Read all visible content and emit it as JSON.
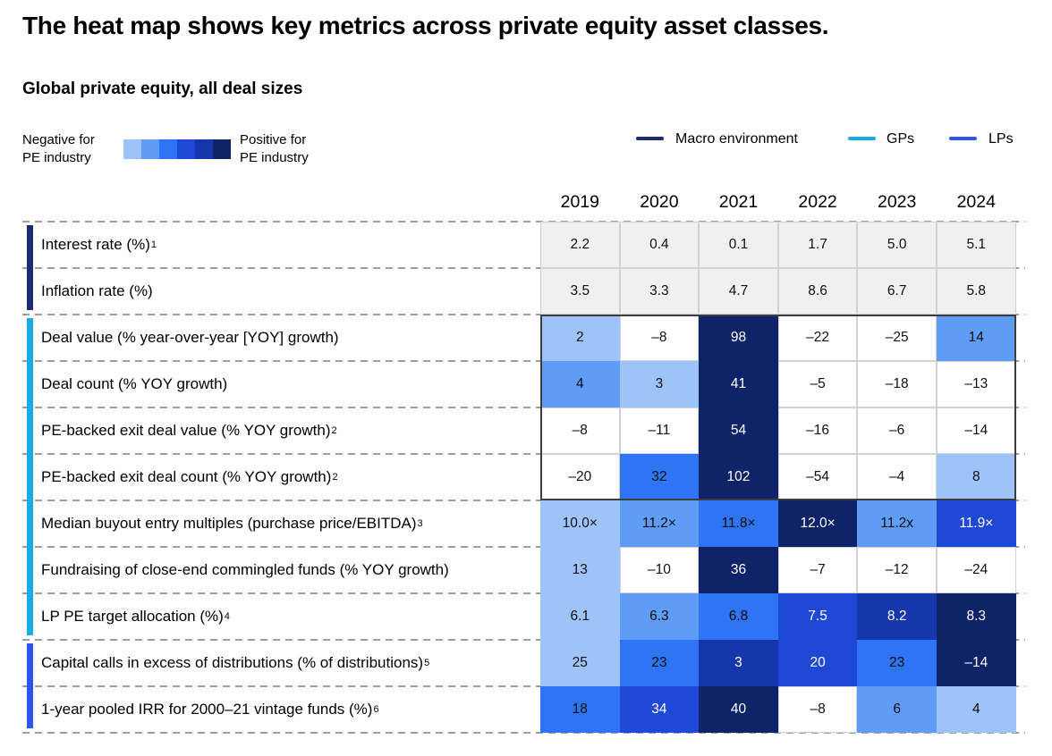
{
  "page": {
    "title": "The heat map shows key metrics across private equity asset classes.",
    "subtitle": "Global private equity, all deal sizes"
  },
  "scale_legend": {
    "negative": [
      "Negative for",
      "PE industry"
    ],
    "positive": [
      "Positive for",
      "PE industry"
    ],
    "swatches": [
      "#9DC3F8",
      "#5F9CF6",
      "#2E74F4",
      "#1E49D6",
      "#1637AB",
      "#0F2368"
    ]
  },
  "line_legend": {
    "items": [
      {
        "label": "Macro environment",
        "color": "#1B2C74"
      },
      {
        "label": "GPs",
        "color": "#19AAE8"
      },
      {
        "label": "LPs",
        "color": "#2E55EE"
      }
    ]
  },
  "palette": {
    "l1": "#9DC3F8",
    "l2": "#5F9CF6",
    "l3": "#2E74F4",
    "l4": "#1E49D6",
    "l5": "#1637AB",
    "l6": "#0F2368",
    "gray": "#F0F0F0",
    "white": "#FFFFFF"
  },
  "white_text_shades": [
    "l4",
    "l5",
    "l6"
  ],
  "chart_data": {
    "type": "heatmap",
    "title": "The heat map shows key metrics across private equity asset classes.",
    "subtitle": "Global private equity, all deal sizes",
    "columns": [
      "2019",
      "2020",
      "2021",
      "2022",
      "2023",
      "2024"
    ],
    "groups": [
      {
        "name": "Macro environment",
        "color": "#1B2C74",
        "row_start": 0,
        "row_end": 1
      },
      {
        "name": "GPs",
        "color": "#19AAE8",
        "row_start": 2,
        "row_end": 8
      },
      {
        "name": "LPs",
        "color": "#2E55EE",
        "row_start": 9,
        "row_end": 10
      }
    ],
    "highlight_box_rows": [
      2,
      5
    ],
    "rows": [
      {
        "label": "Interest rate (%)",
        "sup": "1",
        "group": "Macro environment",
        "cells": [
          {
            "v": "2.2",
            "s": "gray"
          },
          {
            "v": "0.4",
            "s": "gray"
          },
          {
            "v": "0.1",
            "s": "gray"
          },
          {
            "v": "1.7",
            "s": "gray"
          },
          {
            "v": "5.0",
            "s": "gray"
          },
          {
            "v": "5.1",
            "s": "gray"
          }
        ]
      },
      {
        "label": "Inflation rate (%)",
        "sup": "",
        "group": "Macro environment",
        "cells": [
          {
            "v": "3.5",
            "s": "gray"
          },
          {
            "v": "3.3",
            "s": "gray"
          },
          {
            "v": "4.7",
            "s": "gray"
          },
          {
            "v": "8.6",
            "s": "gray"
          },
          {
            "v": "6.7",
            "s": "gray"
          },
          {
            "v": "5.8",
            "s": "gray"
          }
        ]
      },
      {
        "label": "Deal value (% year-over-year [YOY] growth)",
        "sup": "",
        "group": "GPs",
        "cells": [
          {
            "v": "2",
            "s": "l1"
          },
          {
            "v": "–8",
            "s": "white"
          },
          {
            "v": "98",
            "s": "l6"
          },
          {
            "v": "–22",
            "s": "white"
          },
          {
            "v": "–25",
            "s": "white"
          },
          {
            "v": "14",
            "s": "l2"
          }
        ]
      },
      {
        "label": "Deal count (% YOY growth)",
        "sup": "",
        "group": "GPs",
        "cells": [
          {
            "v": "4",
            "s": "l2"
          },
          {
            "v": "3",
            "s": "l1"
          },
          {
            "v": "41",
            "s": "l6"
          },
          {
            "v": "–5",
            "s": "white"
          },
          {
            "v": "–18",
            "s": "white"
          },
          {
            "v": "–13",
            "s": "white"
          }
        ]
      },
      {
        "label": "PE-backed exit deal value (% YOY growth)",
        "sup": "2",
        "group": "GPs",
        "cells": [
          {
            "v": "–8",
            "s": "white"
          },
          {
            "v": "–11",
            "s": "white"
          },
          {
            "v": "54",
            "s": "l6"
          },
          {
            "v": "–16",
            "s": "white"
          },
          {
            "v": "–6",
            "s": "white"
          },
          {
            "v": "–14",
            "s": "white"
          }
        ]
      },
      {
        "label": "PE-backed exit deal count (% YOY growth)",
        "sup": "2",
        "group": "GPs",
        "cells": [
          {
            "v": "–20",
            "s": "white"
          },
          {
            "v": "32",
            "s": "l3"
          },
          {
            "v": "102",
            "s": "l6"
          },
          {
            "v": "–54",
            "s": "white"
          },
          {
            "v": "–4",
            "s": "white"
          },
          {
            "v": "8",
            "s": "l1"
          }
        ]
      },
      {
        "label": "Median buyout entry multiples (purchase price/EBITDA)",
        "sup": "3",
        "group": "GPs",
        "cells": [
          {
            "v": "10.0×",
            "s": "l1"
          },
          {
            "v": "11.2×",
            "s": "l2"
          },
          {
            "v": "11.8×",
            "s": "l3"
          },
          {
            "v": "12.0×",
            "s": "l6"
          },
          {
            "v": "11.2x",
            "s": "l2"
          },
          {
            "v": "11.9×",
            "s": "l4"
          }
        ]
      },
      {
        "label": "Fundraising of close-end commingled funds (% YOY growth)",
        "sup": "",
        "group": "GPs",
        "cells": [
          {
            "v": "13",
            "s": "l1"
          },
          {
            "v": "–10",
            "s": "white"
          },
          {
            "v": "36",
            "s": "l6"
          },
          {
            "v": "–7",
            "s": "white"
          },
          {
            "v": "–12",
            "s": "white"
          },
          {
            "v": "–24",
            "s": "white"
          }
        ]
      },
      {
        "label": "LP PE target allocation (%)",
        "sup": "4",
        "group": "GPs",
        "cells": [
          {
            "v": "6.1",
            "s": "l1"
          },
          {
            "v": "6.3",
            "s": "l2"
          },
          {
            "v": "6.8",
            "s": "l3"
          },
          {
            "v": "7.5",
            "s": "l4"
          },
          {
            "v": "8.2",
            "s": "l5"
          },
          {
            "v": "8.3",
            "s": "l6"
          }
        ]
      },
      {
        "label": "Capital calls in excess of distributions (% of distributions)",
        "sup": "5",
        "group": "LPs",
        "cells": [
          {
            "v": "25",
            "s": "l1"
          },
          {
            "v": "23",
            "s": "l3"
          },
          {
            "v": "3",
            "s": "l5"
          },
          {
            "v": "20",
            "s": "l4"
          },
          {
            "v": "23",
            "s": "l3"
          },
          {
            "v": "–14",
            "s": "l6"
          }
        ]
      },
      {
        "label": "1-year pooled IRR for 2000–21 vintage funds (%)",
        "sup": "6",
        "group": "LPs",
        "cells": [
          {
            "v": "18",
            "s": "l3"
          },
          {
            "v": "34",
            "s": "l4"
          },
          {
            "v": "40",
            "s": "l6"
          },
          {
            "v": "–8",
            "s": "white"
          },
          {
            "v": "6",
            "s": "l2"
          },
          {
            "v": "4",
            "s": "l1"
          }
        ]
      }
    ]
  }
}
